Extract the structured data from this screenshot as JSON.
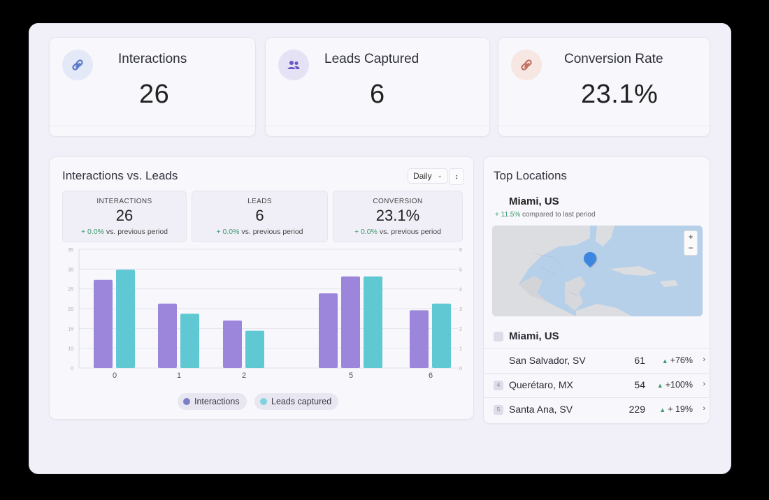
{
  "kpis": [
    {
      "title": "Interactions",
      "value": "26",
      "icon": "link-icon",
      "icon_bg": "#e3e9f7",
      "icon_color": "#5b79c7"
    },
    {
      "title": "Leads Captured",
      "value": "6",
      "icon": "users-icon",
      "icon_bg": "#e6e2f6",
      "icon_color": "#6a58c4"
    },
    {
      "title": "Conversion Rate",
      "value": "23.1%",
      "icon": "link-icon",
      "icon_bg": "#f7e7e2",
      "icon_color": "#c27062"
    }
  ],
  "chart_panel": {
    "title": "Interactions vs. Leads",
    "period_select": "Daily",
    "stats": [
      {
        "label": "INTERACTIONS",
        "value": "26",
        "change": "+ 0.0%",
        "suffix": "vs. previous period"
      },
      {
        "label": "LEADS",
        "value": "6",
        "change": "+ 0.0%",
        "suffix": "vs. previous period"
      },
      {
        "label": "CONVERSION",
        "value": "23.1%",
        "change": "+ 0.0%",
        "suffix": "vs. previous period"
      }
    ],
    "legend": {
      "interactions": "Interactions",
      "leads": "Leads captured"
    }
  },
  "chart_data": {
    "type": "bar",
    "categories": [
      "0",
      "1",
      "2",
      "5",
      "6"
    ],
    "series": [
      {
        "name": "Interactions",
        "values": [
          26,
          19,
          14,
          22,
          17
        ],
        "color": "#9b86dc"
      },
      {
        "name": "Leads captured",
        "values": [
          29,
          16,
          11,
          27,
          19
        ],
        "color": "#5fc8d2"
      },
      {
        "name": "Interactions",
        "values": [
          null,
          null,
          null,
          27,
          null
        ],
        "color": "#9b86dc"
      }
    ],
    "y_left_ticks": [
      "0",
      "10",
      "15",
      "20",
      "25",
      "30",
      "35"
    ],
    "y_right_ticks": [
      "0",
      "1",
      "2",
      "3",
      "4",
      "5",
      "6"
    ],
    "ylim": [
      0,
      35
    ],
    "grid": true,
    "legend_position": "bottom"
  },
  "locations": {
    "title": "Top Locations",
    "featured": {
      "name": "Miami, US",
      "change": "+ 11.5%",
      "suffix": "compared to last period"
    },
    "map_zoom": {
      "in": "+",
      "out": "−"
    },
    "list_header": "Miami, US",
    "rows": [
      {
        "rank": "",
        "name": "San Salvador, SV",
        "count": "61",
        "trend": "+76%"
      },
      {
        "rank": "4",
        "name": "Querétaro, MX",
        "count": "54",
        "trend": "+100%"
      },
      {
        "rank": "5",
        "name": "Santa Ana, SV",
        "count": "229",
        "trend": "+ 19%"
      }
    ]
  },
  "colors": {
    "accent_purple": "#9b86dc",
    "accent_teal": "#5fc8d2",
    "positive": "#3a9a6a"
  }
}
